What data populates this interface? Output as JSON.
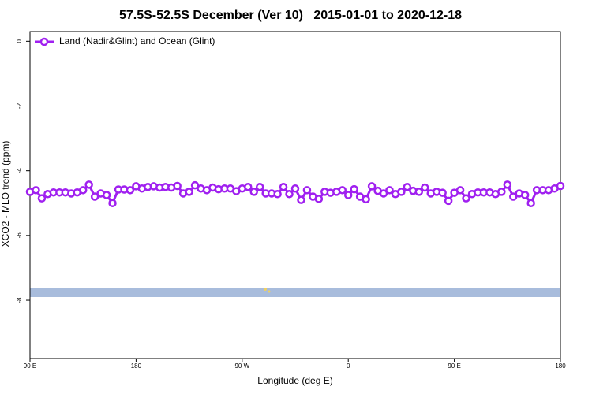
{
  "chart_data": {
    "type": "line",
    "title": "57.5S-52.5S December (Ver 10)   2015-01-01 to 2020-12-18",
    "x_label": "Longitude (deg E)",
    "y_label": "XCO2 - MLO trend (ppm)",
    "x": [
      90,
      95,
      100,
      105,
      110,
      115,
      120,
      125,
      130,
      135,
      140,
      145,
      150,
      155,
      160,
      165,
      170,
      175,
      180,
      185,
      190,
      195,
      200,
      205,
      210,
      215,
      220,
      225,
      230,
      235,
      240,
      245,
      250,
      255,
      260,
      265,
      270,
      275,
      280,
      285,
      290,
      295,
      300,
      305,
      310,
      315,
      320,
      325,
      330,
      335,
      340,
      345,
      350,
      355,
      360,
      365,
      370,
      375,
      380,
      385,
      390,
      395,
      400,
      405,
      410,
      415,
      420,
      425,
      430,
      435,
      440,
      445,
      450,
      455,
      460,
      465,
      470,
      475,
      480,
      485,
      490,
      495,
      500,
      505,
      510,
      515,
      520,
      525,
      530,
      535,
      540
    ],
    "series": [
      {
        "name": "Land (Nadir&Glint) and Ocean (Glint)",
        "color": "#a020f0",
        "values": [
          -4.65,
          -4.6,
          -4.85,
          -4.72,
          -4.67,
          -4.67,
          -4.67,
          -4.7,
          -4.67,
          -4.6,
          -4.43,
          -4.8,
          -4.7,
          -4.75,
          -5.0,
          -4.58,
          -4.58,
          -4.6,
          -4.48,
          -4.55,
          -4.5,
          -4.48,
          -4.52,
          -4.5,
          -4.52,
          -4.47,
          -4.7,
          -4.65,
          -4.45,
          -4.55,
          -4.6,
          -4.52,
          -4.57,
          -4.55,
          -4.55,
          -4.63,
          -4.55,
          -4.5,
          -4.65,
          -4.5,
          -4.7,
          -4.7,
          -4.72,
          -4.5,
          -4.72,
          -4.55,
          -4.9,
          -4.6,
          -4.8,
          -4.87,
          -4.65,
          -4.68,
          -4.65,
          -4.6,
          -4.75,
          -4.57,
          -4.8,
          -4.88,
          -4.48,
          -4.62,
          -4.7,
          -4.6,
          -4.72,
          -4.65,
          -4.5,
          -4.62,
          -4.65,
          -4.52,
          -4.7,
          -4.65,
          -4.68,
          -4.93,
          -4.68,
          -4.6,
          -4.85,
          -4.72,
          -4.67,
          -4.67,
          -4.67,
          -4.72,
          -4.65,
          -4.43,
          -4.8,
          -4.7,
          -4.75,
          -5.0,
          -4.6,
          -4.6,
          -4.6,
          -4.55,
          -4.47
        ]
      }
    ],
    "xlim": [
      90,
      540
    ],
    "xticks": [
      {
        "value": 90,
        "label": "90 E"
      },
      180,
      {
        "value": 270,
        "label": "90 W"
      },
      {
        "value": 360,
        "label": "0"
      },
      {
        "value": 450,
        "label": "90 E"
      },
      {
        "value": 540,
        "label": "180"
      }
    ],
    "ylim": [
      -9.8,
      0.3
    ],
    "yticks": [
      0,
      -2,
      -4,
      -6,
      -8
    ],
    "legend": "top-left"
  }
}
